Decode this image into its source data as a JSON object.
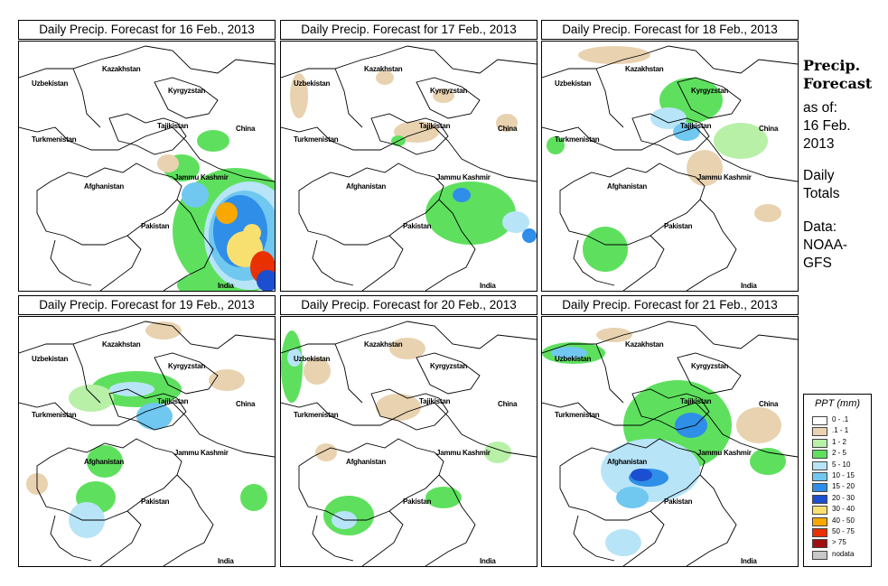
{
  "panels": [
    {
      "title": "Daily Precip. Forecast for  16 Feb., 2013",
      "day": "16 Feb."
    },
    {
      "title": "Daily Precip. Forecast for  17 Feb., 2013",
      "day": "17 Feb."
    },
    {
      "title": "Daily Precip. Forecast for  18 Feb., 2013",
      "day": "18 Feb."
    },
    {
      "title": "Daily Precip. Forecast for  19 Feb., 2013",
      "day": "19 Feb."
    },
    {
      "title": "Daily Precip. Forecast for  20 Feb., 2013",
      "day": "20 Feb."
    },
    {
      "title": "Daily Precip. Forecast for  21 Feb., 2013",
      "day": "21 Feb."
    }
  ],
  "map_labels": {
    "kazakhstan": "Kazakhstan",
    "uzbekistan": "Uzbekistan",
    "kyrgyzstan": "Kyrgyzstan",
    "tajikistan": "Tajikistan",
    "china": "China",
    "turkmenistan": "Turkmenistan",
    "jammu_kashmir": "Jammu Kashmir",
    "afghanistan": "Afghanistan",
    "pakistan": "Pakistan",
    "india": "India"
  },
  "sidebar": {
    "heading_line1": "Precip.",
    "heading_line2": "Forecast",
    "asof_line1": "as of:",
    "asof_line2": "16 Feb.",
    "asof_line3": "2013",
    "totals_line1": "Daily",
    "totals_line2": "Totals",
    "data_line1": "Data:",
    "data_line2": "NOAA-",
    "data_line3": "GFS"
  },
  "legend": {
    "title": "PPT (mm)",
    "items": [
      {
        "label": "0 - .1",
        "color": "#ffffff"
      },
      {
        "label": ".1 - 1",
        "color": "#e8d2b0"
      },
      {
        "label": "1 - 2",
        "color": "#b8f0a8"
      },
      {
        "label": "2 - 5",
        "color": "#5ee05e"
      },
      {
        "label": "5 - 10",
        "color": "#b8e4f8"
      },
      {
        "label": "10 - 15",
        "color": "#70c8f0"
      },
      {
        "label": "15 - 20",
        "color": "#2e8ee8"
      },
      {
        "label": "20 - 30",
        "color": "#1c4ed0"
      },
      {
        "label": "30 - 40",
        "color": "#f8e070"
      },
      {
        "label": "40 - 50",
        "color": "#f8a800"
      },
      {
        "label": "50 - 75",
        "color": "#e83000"
      },
      {
        "label": "> 75",
        "color": "#a01010"
      },
      {
        "label": "nodata",
        "color": "#c8c8c8"
      }
    ]
  }
}
